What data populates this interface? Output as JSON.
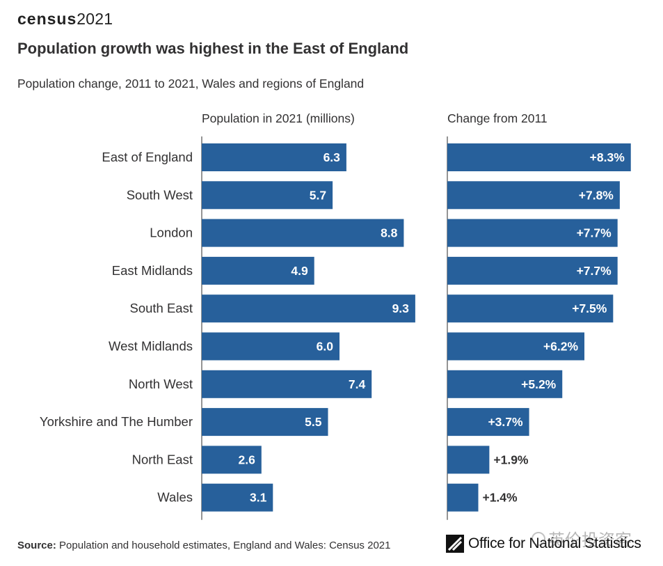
{
  "header": {
    "logo_word": "census",
    "logo_year": "2021",
    "title": "Population growth was highest in the East of England",
    "subtitle": "Population change, 2011 to 2021, Wales and regions of England"
  },
  "colors": {
    "bar": "#27609b",
    "axis": "#707070",
    "text": "#323132"
  },
  "chart_data": [
    {
      "type": "bar",
      "orientation": "horizontal",
      "title": "Population in 2021 (millions)",
      "categories": [
        "East of England",
        "South West",
        "London",
        "East Midlands",
        "South East",
        "West Midlands",
        "North West",
        "Yorkshire and The Humber",
        "North East",
        "Wales"
      ],
      "values": [
        6.3,
        5.7,
        8.8,
        4.9,
        9.3,
        6.0,
        7.4,
        5.5,
        2.6,
        3.1
      ],
      "labels": [
        "6.3",
        "5.7",
        "8.8",
        "4.9",
        "9.3",
        "6.0",
        "7.4",
        "5.5",
        "2.6",
        "3.1"
      ],
      "xlim": [
        0,
        10
      ]
    },
    {
      "type": "bar",
      "orientation": "horizontal",
      "title": "Change from 2011",
      "categories": [
        "East of England",
        "South West",
        "London",
        "East Midlands",
        "South East",
        "West Midlands",
        "North West",
        "Yorkshire and The Humber",
        "North East",
        "Wales"
      ],
      "values": [
        8.3,
        7.8,
        7.7,
        7.7,
        7.5,
        6.2,
        5.2,
        3.7,
        1.9,
        1.4
      ],
      "labels": [
        "+8.3%",
        "+7.8%",
        "+7.7%",
        "+7.7%",
        "+7.5%",
        "+6.2%",
        "+5.2%",
        "+3.7%",
        "+1.9%",
        "+1.4%"
      ],
      "xlim": [
        0,
        9
      ]
    }
  ],
  "footer": {
    "source_label": "Source:",
    "source_text": "Population and household estimates, England and Wales: Census 2021",
    "ons_name": "Office for National Statistics",
    "watermark": "英伦投资客"
  }
}
